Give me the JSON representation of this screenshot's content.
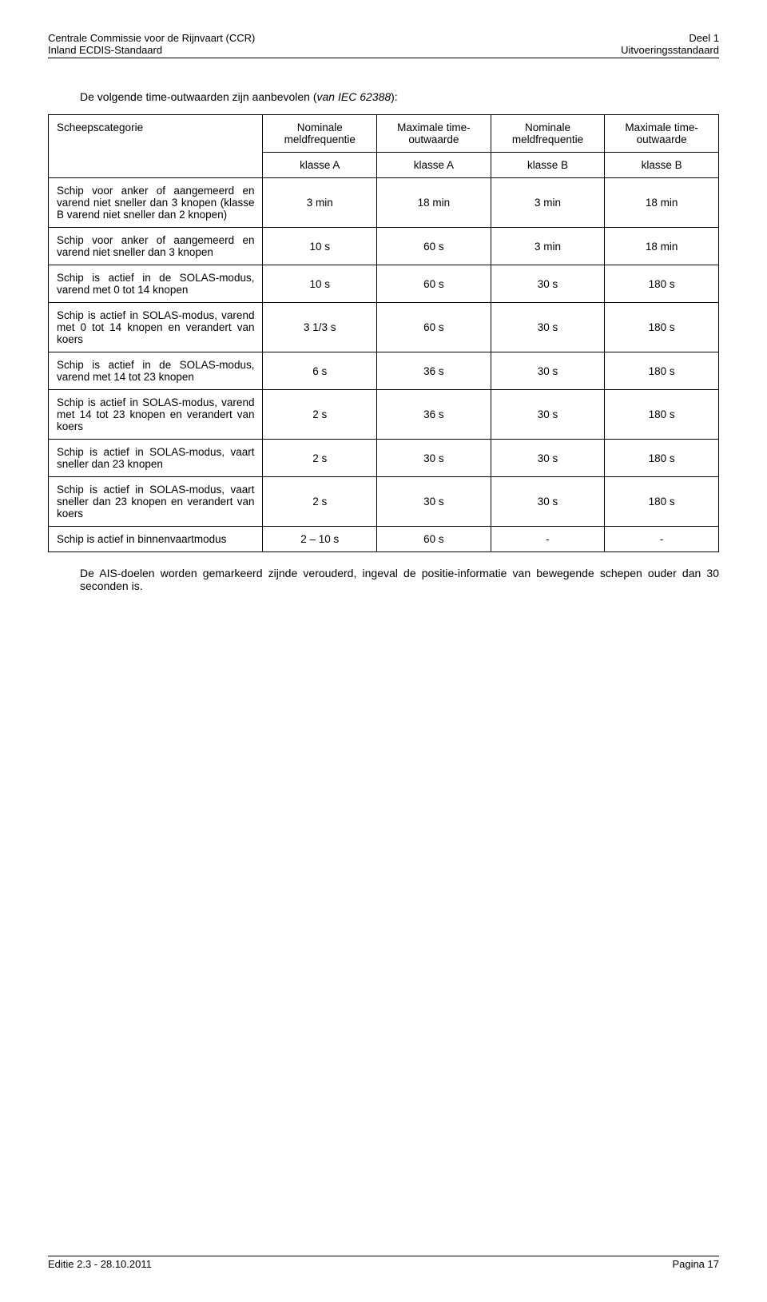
{
  "header": {
    "left_line1": "Centrale Commissie voor de Rijnvaart (CCR)",
    "left_line2": "Inland ECDIS-Standaard",
    "right_line1": "Deel 1",
    "right_line2": "Uitvoeringsstandaard"
  },
  "intro": {
    "text_prefix": "De volgende time-outwaarden zijn aanbevolen (",
    "text_italic": "van IEC 62388",
    "text_suffix": "):"
  },
  "table": {
    "head_row1": {
      "c0": "Scheepscategorie",
      "c1": "Nominale meldfrequentie",
      "c2": "Maximale time-outwaarde",
      "c3": "Nominale meldfrequentie",
      "c4": "Maximale time-outwaarde"
    },
    "head_row2": {
      "c1": "klasse A",
      "c2": "klasse A",
      "c3": "klasse B",
      "c4": "klasse B"
    },
    "rows": [
      {
        "desc": "Schip voor anker of aangemeerd en varend niet sneller dan 3 knopen (klasse B varend niet sneller dan 2 knopen)",
        "c1": "3 min",
        "c2": "18 min",
        "c3": "3 min",
        "c4": "18 min"
      },
      {
        "desc": "Schip voor anker of aangemeerd en varend niet sneller dan 3 knopen",
        "c1": "10 s",
        "c2": "60 s",
        "c3": "3 min",
        "c4": "18 min"
      },
      {
        "desc": "Schip is actief in de SOLAS-modus, varend met 0 tot 14 knopen",
        "c1": "10 s",
        "c2": "60 s",
        "c3": "30 s",
        "c4": "180 s"
      },
      {
        "desc": "Schip is actief in SOLAS-modus, varend met 0 tot 14 knopen en verandert van koers",
        "c1": "3 1/3 s",
        "c2": "60 s",
        "c3": "30 s",
        "c4": "180 s"
      },
      {
        "desc": "Schip is actief in de SOLAS-modus, varend met 14 tot 23 knopen",
        "c1": "6 s",
        "c2": "36 s",
        "c3": "30 s",
        "c4": "180 s"
      },
      {
        "desc": "Schip is actief in SOLAS-modus, varend met 14 tot 23 knopen en verandert van koers",
        "c1": "2 s",
        "c2": "36 s",
        "c3": "30 s",
        "c4": "180 s"
      },
      {
        "desc": "Schip is actief in SOLAS-modus, vaart sneller dan 23 knopen",
        "c1": "2 s",
        "c2": "30 s",
        "c3": "30 s",
        "c4": "180 s"
      },
      {
        "desc": "Schip is actief in SOLAS-modus, vaart sneller dan 23 knopen en verandert van koers",
        "c1": "2 s",
        "c2": "30 s",
        "c3": "30 s",
        "c4": "180 s"
      },
      {
        "desc": "Schip is actief in binnenvaartmodus",
        "c1": "2 – 10 s",
        "c2": "60 s",
        "c3": "-",
        "c4": "-"
      }
    ]
  },
  "closing": "De AIS-doelen worden gemarkeerd zijnde verouderd, ingeval de positie-informatie van bewegende schepen ouder dan 30 seconden is.",
  "footer": {
    "left": "Editie 2.3 - 28.10.2011",
    "right": "Pagina 17"
  }
}
